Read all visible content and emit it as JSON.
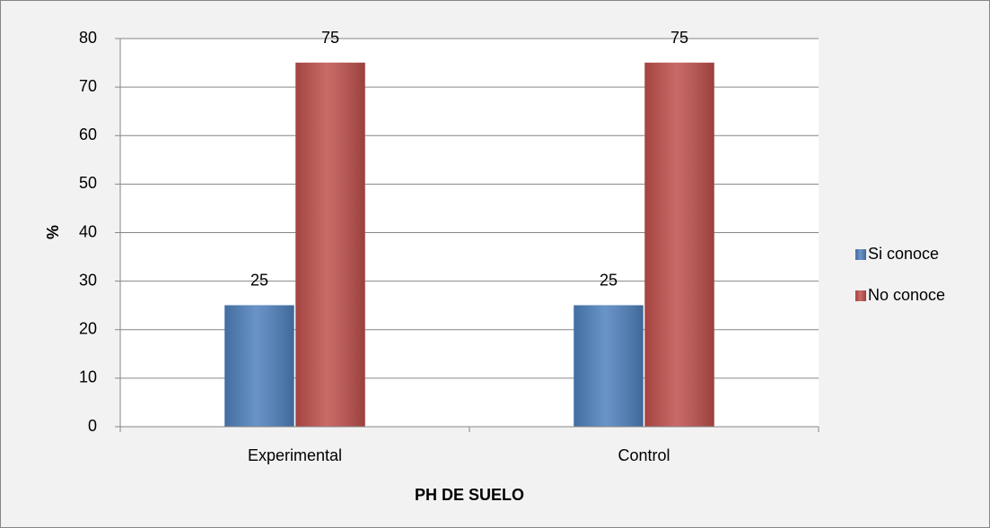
{
  "chart_data": {
    "type": "bar",
    "categories": [
      "Experimental",
      "Control"
    ],
    "series": [
      {
        "name": "Si conoce",
        "color": "#4f81bd",
        "values": [
          25,
          25
        ]
      },
      {
        "name": "No conoce",
        "color": "#c0504d",
        "values": [
          75,
          75
        ]
      }
    ],
    "ylim": [
      0,
      80
    ],
    "yticks": [
      0,
      10,
      20,
      30,
      40,
      50,
      60,
      70,
      80
    ],
    "grid": true,
    "ylabel": "%",
    "xlabel": "PH DE SUELO",
    "legend": "right"
  }
}
